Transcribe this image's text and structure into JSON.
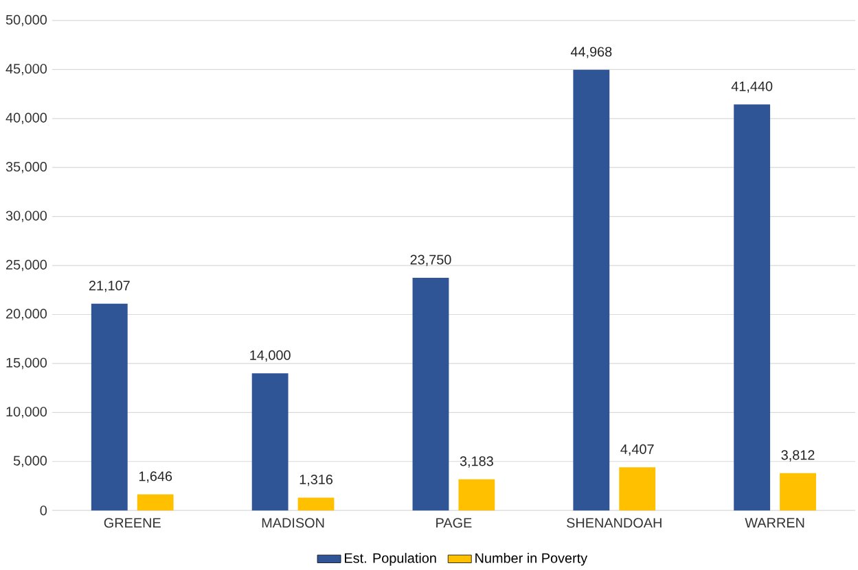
{
  "chart_data": {
    "type": "bar",
    "categories": [
      "GREENE",
      "MADISON",
      "PAGE",
      "SHENANDOAH",
      "WARREN"
    ],
    "series": [
      {
        "name": "Est. Population",
        "color": "#2f5597",
        "values": [
          21107,
          14000,
          23750,
          44968,
          41440
        ],
        "value_labels": [
          "21,107",
          "14,000",
          "23,750",
          "44,968",
          "41,440"
        ]
      },
      {
        "name": "Number in Poverty",
        "color": "#ffc000",
        "values": [
          1646,
          1316,
          3183,
          4407,
          3812
        ],
        "value_labels": [
          "1,646",
          "1,316",
          "3,183",
          "4,407",
          "3,812"
        ]
      }
    ],
    "ylim": [
      0,
      50000
    ],
    "yticks": [
      {
        "value": 0,
        "label": "0"
      },
      {
        "value": 5000,
        "label": "5,000"
      },
      {
        "value": 10000,
        "label": "10,000"
      },
      {
        "value": 15000,
        "label": "15,000"
      },
      {
        "value": 20000,
        "label": "20,000"
      },
      {
        "value": 25000,
        "label": "25,000"
      },
      {
        "value": 30000,
        "label": "30,000"
      },
      {
        "value": 35000,
        "label": "35,000"
      },
      {
        "value": 40000,
        "label": "40,000"
      },
      {
        "value": 45000,
        "label": "45,000"
      },
      {
        "value": 50000,
        "label": "50,000"
      }
    ],
    "grid": "y",
    "legend": "bottom"
  }
}
